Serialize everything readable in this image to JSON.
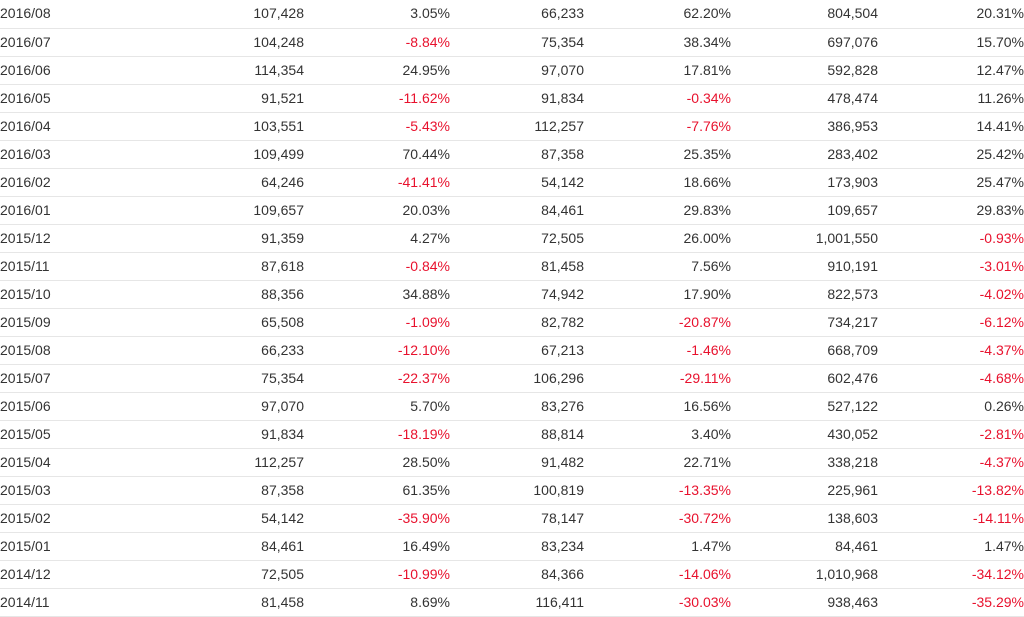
{
  "table": {
    "rows": [
      [
        "2016/08",
        "107,428",
        "3.05%",
        "66,233",
        "62.20%",
        "804,504",
        "20.31%"
      ],
      [
        "2016/07",
        "104,248",
        "-8.84%",
        "75,354",
        "38.34%",
        "697,076",
        "15.70%"
      ],
      [
        "2016/06",
        "114,354",
        "24.95%",
        "97,070",
        "17.81%",
        "592,828",
        "12.47%"
      ],
      [
        "2016/05",
        "91,521",
        "-11.62%",
        "91,834",
        "-0.34%",
        "478,474",
        "11.26%"
      ],
      [
        "2016/04",
        "103,551",
        "-5.43%",
        "112,257",
        "-7.76%",
        "386,953",
        "14.41%"
      ],
      [
        "2016/03",
        "109,499",
        "70.44%",
        "87,358",
        "25.35%",
        "283,402",
        "25.42%"
      ],
      [
        "2016/02",
        "64,246",
        "-41.41%",
        "54,142",
        "18.66%",
        "173,903",
        "25.47%"
      ],
      [
        "2016/01",
        "109,657",
        "20.03%",
        "84,461",
        "29.83%",
        "109,657",
        "29.83%"
      ],
      [
        "2015/12",
        "91,359",
        "4.27%",
        "72,505",
        "26.00%",
        "1,001,550",
        "-0.93%"
      ],
      [
        "2015/11",
        "87,618",
        "-0.84%",
        "81,458",
        "7.56%",
        "910,191",
        "-3.01%"
      ],
      [
        "2015/10",
        "88,356",
        "34.88%",
        "74,942",
        "17.90%",
        "822,573",
        "-4.02%"
      ],
      [
        "2015/09",
        "65,508",
        "-1.09%",
        "82,782",
        "-20.87%",
        "734,217",
        "-6.12%"
      ],
      [
        "2015/08",
        "66,233",
        "-12.10%",
        "67,213",
        "-1.46%",
        "668,709",
        "-4.37%"
      ],
      [
        "2015/07",
        "75,354",
        "-22.37%",
        "106,296",
        "-29.11%",
        "602,476",
        "-4.68%"
      ],
      [
        "2015/06",
        "97,070",
        "5.70%",
        "83,276",
        "16.56%",
        "527,122",
        "0.26%"
      ],
      [
        "2015/05",
        "91,834",
        "-18.19%",
        "88,814",
        "3.40%",
        "430,052",
        "-2.81%"
      ],
      [
        "2015/04",
        "112,257",
        "28.50%",
        "91,482",
        "22.71%",
        "338,218",
        "-4.37%"
      ],
      [
        "2015/03",
        "87,358",
        "61.35%",
        "100,819",
        "-13.35%",
        "225,961",
        "-13.82%"
      ],
      [
        "2015/02",
        "54,142",
        "-35.90%",
        "78,147",
        "-30.72%",
        "138,603",
        "-14.11%"
      ],
      [
        "2015/01",
        "84,461",
        "16.49%",
        "83,234",
        "1.47%",
        "84,461",
        "1.47%"
      ],
      [
        "2014/12",
        "72,505",
        "-10.99%",
        "84,366",
        "-14.06%",
        "1,010,968",
        "-34.12%"
      ],
      [
        "2014/11",
        "81,458",
        "8.69%",
        "116,411",
        "-30.03%",
        "938,463",
        "-35.29%"
      ]
    ]
  },
  "colors": {
    "negative": "#e8112d",
    "text": "#333333",
    "row_border": "#e6e6e6"
  }
}
